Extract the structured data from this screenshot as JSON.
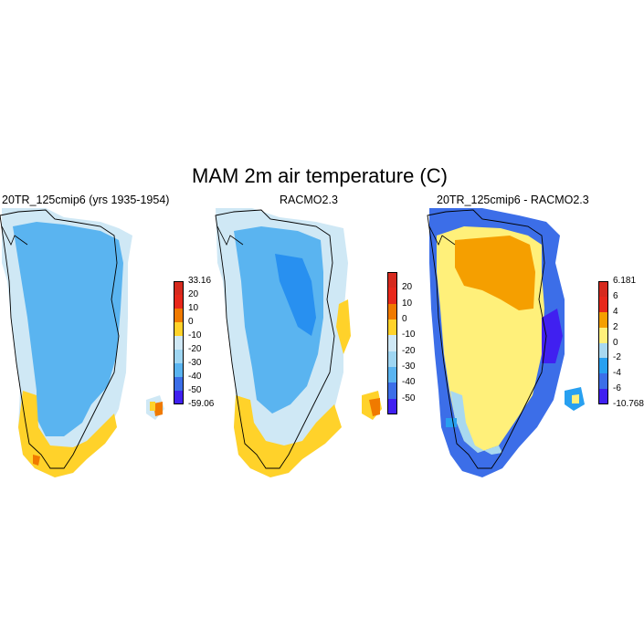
{
  "figure_title": "MAM 2m air temperature (C)",
  "panels": [
    {
      "title": "20TR_125cmip6 (yrs 1935-1954)",
      "colorbar": {
        "labels": [
          "33.16",
          "20",
          "10",
          "0",
          "-10",
          "-20",
          "-30",
          "-40",
          "-50",
          "-59.06"
        ],
        "colors": [
          "#d62a1e",
          "#e8281b",
          "#f07a00",
          "#ffd22a",
          "#cfe8f5",
          "#9fd6f2",
          "#5ab4f0",
          "#3c6ee8",
          "#4020f0"
        ]
      }
    },
    {
      "title": "RACMO2.3",
      "colorbar": {
        "labels": [
          "20",
          "10",
          "0",
          "-10",
          "-20",
          "-30",
          "-40",
          "-50"
        ],
        "colors": [
          "#d62a1e",
          "#e8281b",
          "#f07a00",
          "#ffd22a",
          "#cfe8f5",
          "#9fd6f2",
          "#5ab4f0",
          "#3c6ee8",
          "#4020f0"
        ]
      }
    },
    {
      "title": "20TR_125cmip6 - RACMO2.3",
      "colorbar": {
        "labels": [
          "6.181",
          "6",
          "4",
          "2",
          "0",
          "-2",
          "-4",
          "-6",
          "-10.768"
        ],
        "colors": [
          "#d62a1e",
          "#e8281b",
          "#f59f00",
          "#fff07a",
          "#a8d8f0",
          "#28a0f0",
          "#3c6ee8",
          "#4020f0"
        ]
      }
    }
  ],
  "map_colors": {
    "coastline": "#000000",
    "panel1": {
      "outer": "#cfe8f5",
      "main": "#5ab4f0",
      "coast": "#ffd22a",
      "warm": "#f07a00"
    },
    "panel2": {
      "outer": "#cfe8f5",
      "main": "#5ab4f0",
      "core": "#2890f0",
      "coast": "#ffd22a",
      "warm": "#f07a00"
    },
    "panel3": {
      "outer": "#3c6ee8",
      "edge": "#4020f0",
      "main": "#fff07a",
      "orange": "#f59f00",
      "light": "#a8d8f0",
      "blue": "#28a0f0"
    }
  }
}
